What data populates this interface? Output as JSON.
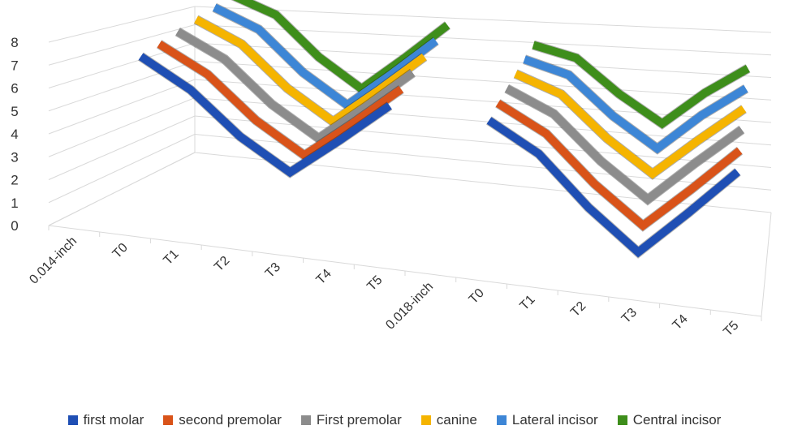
{
  "chart_data": {
    "type": "line",
    "title": "",
    "xlabel": "",
    "ylabel": "",
    "ylim": [
      0,
      8
    ],
    "y_ticks": [
      "0",
      "1",
      "2",
      "3",
      "4",
      "5",
      "6",
      "7",
      "8"
    ],
    "categories": [
      "0.014-inch",
      "T0",
      "T1",
      "T2",
      "T3",
      "T4",
      "T5",
      "0.018-inch",
      "T0",
      "T1",
      "T2",
      "T3",
      "T4",
      "T5"
    ],
    "segments": [
      {
        "label": "0.014-inch",
        "category_indices": [
          1,
          2,
          3,
          4,
          5,
          6
        ]
      },
      {
        "label": "0.018-inch",
        "category_indices": [
          8,
          9,
          10,
          11,
          12,
          13
        ]
      }
    ],
    "series": [
      {
        "name": "first molar",
        "color": "#1f4fb4",
        "values": [
          null,
          7.5,
          6.3,
          4.5,
          3.2,
          4.9,
          6.7,
          null,
          6.6,
          5.4,
          3.3,
          1.6,
          3.6,
          5.7
        ]
      },
      {
        "name": "second premolar",
        "color": "#d95319",
        "values": [
          null,
          7.7,
          6.6,
          4.8,
          3.5,
          5.2,
          7.0,
          null,
          6.9,
          5.8,
          3.8,
          2.2,
          4.1,
          6.1
        ]
      },
      {
        "name": "First premolar",
        "color": "#8c8c8c",
        "values": [
          null,
          7.9,
          6.9,
          5.1,
          3.8,
          5.5,
          7.3,
          null,
          7.1,
          6.2,
          4.3,
          2.8,
          4.7,
          6.5
        ]
      },
      {
        "name": "canine",
        "color": "#f5b400",
        "values": [
          null,
          8.1,
          7.2,
          5.4,
          4.1,
          5.8,
          7.6,
          null,
          7.3,
          6.6,
          4.8,
          3.4,
          5.2,
          6.9
        ]
      },
      {
        "name": "Lateral incisor",
        "color": "#3d86d6",
        "values": [
          null,
          8.3,
          7.5,
          5.7,
          4.4,
          6.1,
          7.9,
          null,
          7.5,
          7.0,
          5.3,
          4.0,
          5.8,
          7.3
        ]
      },
      {
        "name": "Central incisor",
        "color": "#3e8e1b",
        "values": [
          null,
          8.5,
          7.8,
          6.0,
          4.7,
          6.4,
          8.2,
          null,
          7.7,
          7.3,
          5.8,
          4.6,
          6.3,
          7.7
        ]
      }
    ],
    "grid": true,
    "legend_position": "bottom"
  }
}
